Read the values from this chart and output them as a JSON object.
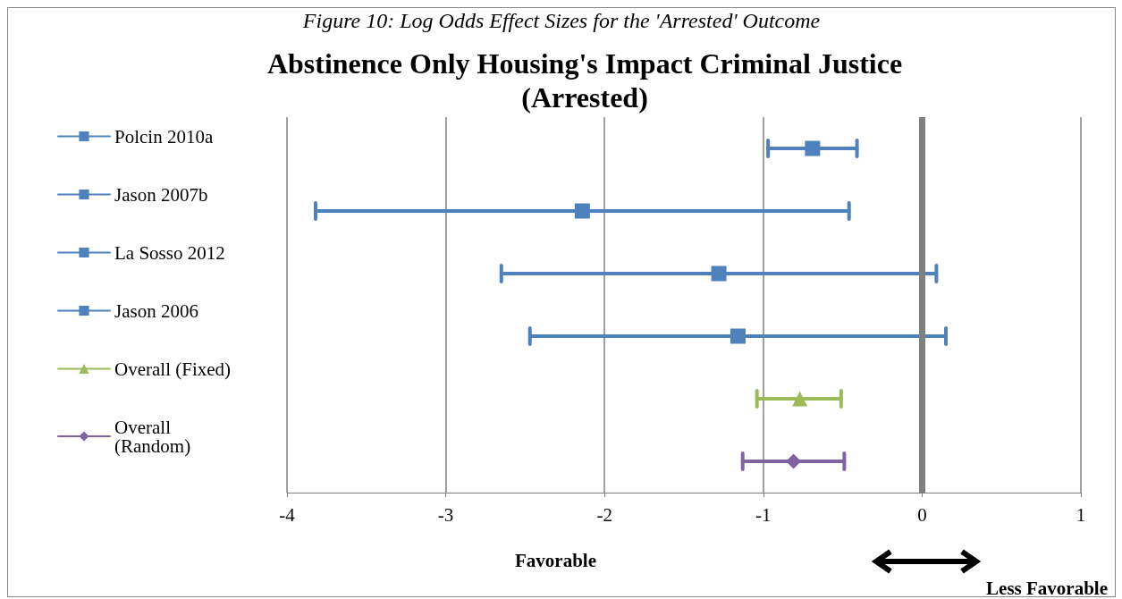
{
  "chart_data": {
    "type": "line",
    "title": "Abstinence Only Housing's Impact Criminal Justice\n(Arrested)",
    "orientation": "horizontal",
    "categories": [
      null,
      null,
      null,
      null,
      null,
      null
    ],
    "xlim": [
      -4,
      1
    ],
    "xticks": [
      -4,
      -3,
      -2,
      -1,
      0,
      1
    ],
    "grid": "x",
    "legend": "left",
    "ref_lines": [
      {
        "axis": "x",
        "value": 0,
        "color": "#808080"
      }
    ],
    "annotations": [
      "Figure 10: Log Odds Effect Sizes for the 'Arrested' Outcome",
      "Favorable",
      "Less Favorable"
    ],
    "series": [
      {
        "name": "Polcin 2010a",
        "color": "#4f81bd",
        "marker": "square",
        "values": [
          -0.69,
          null,
          null,
          null,
          null,
          null
        ],
        "errors": [
          [
            -0.97,
            -0.41
          ],
          null,
          null,
          null,
          null,
          null
        ]
      },
      {
        "name": "Jason 2007b",
        "color": "#4f81bd",
        "marker": "square",
        "values": [
          null,
          -2.14,
          null,
          null,
          null,
          null
        ],
        "errors": [
          null,
          [
            -3.82,
            -0.46
          ],
          null,
          null,
          null,
          null
        ]
      },
      {
        "name": "La Sosso 2012",
        "color": "#4f81bd",
        "marker": "square",
        "values": [
          null,
          null,
          -1.28,
          null,
          null,
          null
        ],
        "errors": [
          null,
          null,
          [
            -2.65,
            0.09
          ],
          null,
          null,
          null
        ]
      },
      {
        "name": "Jason 2006",
        "color": "#4f81bd",
        "marker": "square",
        "values": [
          null,
          null,
          null,
          -1.16,
          null,
          null
        ],
        "errors": [
          null,
          null,
          null,
          [
            -2.47,
            0.15
          ],
          null,
          null
        ]
      },
      {
        "name": "Overall (Fixed)",
        "color": "#9bbb59",
        "marker": "triangle",
        "values": [
          null,
          null,
          null,
          null,
          -0.77,
          null
        ],
        "errors": [
          null,
          null,
          null,
          null,
          [
            -1.04,
            -0.51
          ],
          null
        ]
      },
      {
        "name": "Overall\n(Random)",
        "color": "#8064a2",
        "marker": "diamond",
        "values": [
          null,
          null,
          null,
          null,
          null,
          -0.81
        ],
        "errors": [
          null,
          null,
          null,
          null,
          null,
          [
            -1.13,
            -0.49
          ]
        ]
      }
    ]
  }
}
